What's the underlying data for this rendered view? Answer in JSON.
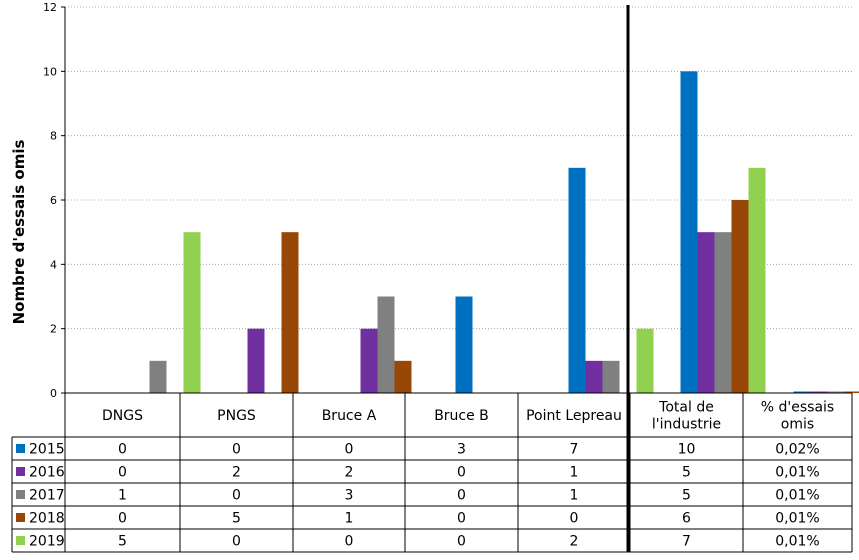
{
  "chart_data": {
    "type": "bar",
    "ylabel": "Nombre d'essais omis",
    "ylim": [
      0,
      12
    ],
    "yticks": [
      0,
      2,
      4,
      6,
      8,
      10,
      12
    ],
    "grid": true,
    "categories": [
      {
        "lines": [
          "DNGS"
        ]
      },
      {
        "lines": [
          "PNGS"
        ]
      },
      {
        "lines": [
          "Bruce A"
        ]
      },
      {
        "lines": [
          "Bruce B"
        ]
      },
      {
        "lines": [
          "Point Lepreau"
        ]
      },
      {
        "lines": [
          "Total de",
          "l'industrie"
        ]
      },
      {
        "lines": [
          "% d'essais",
          "omis"
        ]
      }
    ],
    "series": [
      {
        "name": "2015",
        "color": "#0070C0",
        "values": [
          0,
          0,
          0,
          3,
          7,
          10,
          0.02
        ],
        "labels": [
          "0",
          "0",
          "0",
          "3",
          "7",
          "10",
          "0,02%"
        ]
      },
      {
        "name": "2016",
        "color": "#7030A0",
        "values": [
          0,
          2,
          2,
          0,
          1,
          5,
          0.01
        ],
        "labels": [
          "0",
          "2",
          "2",
          "0",
          "1",
          "5",
          "0,01%"
        ]
      },
      {
        "name": "2017",
        "color": "#808080",
        "values": [
          1,
          0,
          3,
          0,
          1,
          5,
          0.01
        ],
        "labels": [
          "1",
          "0",
          "3",
          "0",
          "1",
          "5",
          "0,01%"
        ]
      },
      {
        "name": "2018",
        "color": "#974706",
        "values": [
          0,
          5,
          1,
          0,
          0,
          6,
          0.01
        ],
        "labels": [
          "0",
          "5",
          "1",
          "0",
          "0",
          "6",
          "0,01%"
        ]
      },
      {
        "name": "2019",
        "color": "#92D050",
        "values": [
          5,
          0,
          0,
          0,
          2,
          7,
          0.01
        ],
        "labels": [
          "5",
          "0",
          "0",
          "0",
          "2",
          "7",
          "0,01%"
        ]
      }
    ],
    "legend": "table-left"
  }
}
